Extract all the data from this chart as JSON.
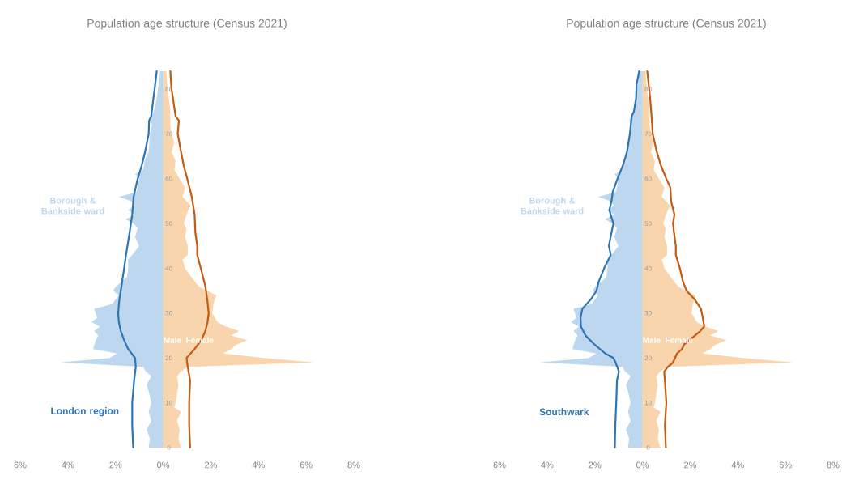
{
  "chart_data": [
    {
      "type": "area",
      "orientation": "horizontal",
      "title": "Population age structure (Census 2021)",
      "annotations": [
        "Male",
        "Female"
      ],
      "xlim": [
        -6,
        8
      ],
      "xticks": [
        {
          "value": -6,
          "label": "6%"
        },
        {
          "value": -4,
          "label": "4%"
        },
        {
          "value": -2,
          "label": "2%"
        },
        {
          "value": 0,
          "label": "0%"
        },
        {
          "value": 2,
          "label": "2%"
        },
        {
          "value": 4,
          "label": "4%"
        },
        {
          "value": 6,
          "label": "6%"
        },
        {
          "value": 8,
          "label": "8%"
        }
      ],
      "ylim": [
        0,
        84
      ],
      "yticks": [
        0,
        10,
        20,
        30,
        40,
        50,
        60,
        70,
        80
      ],
      "series": [
        {
          "name": "Borough & Bankside ward",
          "type": "area",
          "color": "#bdd7ee",
          "x": [
            0,
            2,
            4,
            6,
            8,
            10,
            12,
            14,
            16,
            17,
            18,
            19,
            20,
            21,
            22,
            24,
            25,
            26,
            27,
            28,
            29,
            31,
            32,
            34,
            35,
            36,
            38,
            40,
            42,
            43,
            45,
            47,
            49,
            50,
            51,
            52,
            53,
            54,
            55,
            56,
            57,
            58,
            60,
            61,
            62,
            64,
            66,
            68,
            70,
            72,
            73,
            75,
            78,
            80,
            84
          ],
          "values": [
            -0.61,
            -0.56,
            -0.69,
            -0.5,
            -0.61,
            -0.5,
            -0.58,
            -0.69,
            -0.5,
            -0.73,
            -0.84,
            -4.3,
            -2.26,
            -1.92,
            -2.94,
            -2.83,
            -2.72,
            -2.9,
            -2.66,
            -3.0,
            -2.77,
            -2.9,
            -2.15,
            -1.86,
            -2.1,
            -1.98,
            -1.52,
            -1.47,
            -1.47,
            -1.3,
            -1.01,
            -1.18,
            -1.07,
            -1.24,
            -1.58,
            -1.18,
            -1.47,
            -1.18,
            -1.35,
            -1.86,
            -1.13,
            -1.07,
            -1.01,
            -1.18,
            -0.84,
            -0.78,
            -0.61,
            -0.58,
            -0.56,
            -0.47,
            -0.56,
            -0.39,
            -0.27,
            -0.22,
            -0.13
          ]
        },
        {
          "type": "area",
          "color": "#f8d5ac",
          "x": [
            0,
            2,
            4,
            6,
            8,
            9,
            10,
            12,
            14,
            16,
            17,
            18,
            19,
            20,
            21,
            22,
            23,
            24,
            25,
            26,
            27,
            28,
            30,
            32,
            34,
            35,
            36,
            38,
            40,
            42,
            43,
            45,
            47,
            49,
            50,
            52,
            54,
            56,
            58,
            60,
            62,
            64,
            66,
            68,
            70,
            72,
            75,
            78,
            80,
            84
          ],
          "values": [
            0.75,
            0.64,
            0.69,
            0.58,
            0.75,
            0.47,
            0.52,
            0.58,
            0.64,
            0.58,
            0.75,
            1.03,
            6.32,
            4.22,
            2.51,
            2.85,
            3.08,
            3.53,
            2.85,
            3.19,
            2.63,
            2.28,
            2.06,
            2.11,
            2.23,
            1.83,
            1.49,
            1.2,
            0.92,
            0.81,
            1.03,
            1.03,
            0.92,
            0.98,
            0.86,
            0.98,
            1.15,
            0.81,
            0.92,
            0.69,
            0.47,
            0.52,
            0.35,
            0.47,
            0.35,
            0.3,
            0.3,
            0.24,
            0.18,
            0.13
          ]
        },
        {
          "name": "London region",
          "type": "line",
          "color": "#2e75b6",
          "x": [
            0,
            5,
            10,
            15,
            18,
            20,
            22,
            24,
            26,
            28,
            30,
            33,
            36,
            40,
            43,
            48,
            52,
            56,
            60,
            63,
            66,
            70,
            73,
            74,
            78,
            80,
            84
          ],
          "values": [
            -1.26,
            -1.3,
            -1.3,
            -1.22,
            -1.15,
            -1.18,
            -1.47,
            -1.64,
            -1.78,
            -1.86,
            -1.89,
            -1.84,
            -1.75,
            -1.64,
            -1.56,
            -1.41,
            -1.3,
            -1.24,
            -1.07,
            -0.9,
            -0.76,
            -0.61,
            -0.59,
            -0.5,
            -0.41,
            -0.36,
            -0.27
          ]
        },
        {
          "type": "line",
          "color": "#c55a11",
          "x": [
            0,
            5,
            10,
            15,
            18,
            20,
            22,
            24,
            26,
            28,
            30,
            33,
            36,
            40,
            43,
            45,
            48,
            52,
            56,
            60,
            63,
            66,
            70,
            73,
            74,
            78,
            80,
            84
          ],
          "values": [
            1.13,
            1.09,
            1.09,
            1.13,
            1.03,
            0.98,
            1.32,
            1.6,
            1.77,
            1.86,
            1.91,
            1.85,
            1.77,
            1.58,
            1.43,
            1.43,
            1.35,
            1.32,
            1.2,
            1.01,
            0.86,
            0.75,
            0.61,
            0.66,
            0.52,
            0.41,
            0.35,
            0.3
          ]
        }
      ]
    },
    {
      "type": "area",
      "orientation": "horizontal",
      "title": "Population age structure (Census 2021)",
      "annotations": [
        "Male",
        "Female"
      ],
      "xlim": [
        -6,
        8
      ],
      "xticks": [
        {
          "value": -6,
          "label": "6%"
        },
        {
          "value": -4,
          "label": "4%"
        },
        {
          "value": -2,
          "label": "2%"
        },
        {
          "value": 0,
          "label": "0%"
        },
        {
          "value": 2,
          "label": "2%"
        },
        {
          "value": 4,
          "label": "4%"
        },
        {
          "value": 6,
          "label": "6%"
        },
        {
          "value": 8,
          "label": "8%"
        }
      ],
      "ylim": [
        0,
        84
      ],
      "yticks": [
        0,
        10,
        20,
        30,
        40,
        50,
        60,
        70,
        80
      ],
      "series": [
        {
          "name": "Borough & Bankside ward",
          "type": "area",
          "color": "#bdd7ee",
          "x": [
            0,
            2,
            4,
            6,
            8,
            10,
            12,
            14,
            16,
            17,
            18,
            19,
            20,
            21,
            22,
            24,
            25,
            26,
            27,
            28,
            29,
            31,
            32,
            34,
            35,
            36,
            38,
            40,
            42,
            43,
            45,
            47,
            49,
            50,
            51,
            52,
            53,
            54,
            55,
            56,
            57,
            58,
            60,
            61,
            62,
            64,
            66,
            68,
            70,
            72,
            73,
            75,
            78,
            80,
            84
          ],
          "values": [
            -0.61,
            -0.56,
            -0.69,
            -0.5,
            -0.61,
            -0.5,
            -0.58,
            -0.69,
            -0.5,
            -0.73,
            -0.84,
            -4.3,
            -2.26,
            -1.92,
            -2.94,
            -2.83,
            -2.72,
            -2.9,
            -2.66,
            -3.0,
            -2.77,
            -2.9,
            -2.15,
            -1.86,
            -2.1,
            -1.98,
            -1.52,
            -1.47,
            -1.47,
            -1.3,
            -1.01,
            -1.18,
            -1.07,
            -1.24,
            -1.58,
            -1.18,
            -1.47,
            -1.18,
            -1.35,
            -1.86,
            -1.13,
            -1.07,
            -1.01,
            -1.18,
            -0.84,
            -0.78,
            -0.61,
            -0.58,
            -0.56,
            -0.47,
            -0.56,
            -0.39,
            -0.27,
            -0.22,
            -0.13
          ]
        },
        {
          "type": "area",
          "color": "#f8d5ac",
          "x": [
            0,
            2,
            4,
            6,
            8,
            9,
            10,
            12,
            14,
            16,
            17,
            18,
            19,
            20,
            21,
            22,
            23,
            24,
            25,
            26,
            27,
            28,
            30,
            32,
            34,
            35,
            36,
            38,
            40,
            42,
            43,
            45,
            47,
            49,
            50,
            52,
            54,
            56,
            58,
            60,
            62,
            64,
            66,
            68,
            70,
            72,
            75,
            78,
            80,
            84
          ],
          "values": [
            0.75,
            0.64,
            0.69,
            0.58,
            0.75,
            0.47,
            0.52,
            0.58,
            0.64,
            0.58,
            0.75,
            1.03,
            6.32,
            4.22,
            2.51,
            2.85,
            3.08,
            3.53,
            2.85,
            3.19,
            2.63,
            2.28,
            2.06,
            2.11,
            2.23,
            1.83,
            1.49,
            1.2,
            0.92,
            0.81,
            1.03,
            1.03,
            0.92,
            0.98,
            0.86,
            0.98,
            1.15,
            0.81,
            0.92,
            0.69,
            0.47,
            0.52,
            0.35,
            0.47,
            0.35,
            0.3,
            0.3,
            0.24,
            0.18,
            0.13
          ]
        },
        {
          "name": "Southwark",
          "type": "line",
          "color": "#2e75b6",
          "x": [
            0,
            5,
            10,
            15,
            17,
            19,
            20,
            21,
            23,
            25,
            27,
            29,
            31,
            33,
            35,
            37,
            40,
            43,
            45,
            48,
            50,
            53,
            55,
            57,
            60,
            63,
            66,
            70,
            74,
            75,
            78,
            81,
            84
          ],
          "values": [
            -1.16,
            -1.14,
            -1.1,
            -1.07,
            -0.99,
            -1.13,
            -1.22,
            -1.56,
            -2.01,
            -2.39,
            -2.58,
            -2.6,
            -2.52,
            -2.18,
            -1.93,
            -1.84,
            -1.61,
            -1.33,
            -1.41,
            -1.3,
            -1.22,
            -1.39,
            -1.3,
            -1.25,
            -1.05,
            -0.82,
            -0.65,
            -0.53,
            -0.45,
            -0.36,
            -0.27,
            -0.25,
            -0.14
          ]
        },
        {
          "type": "line",
          "color": "#c55a11",
          "x": [
            0,
            5,
            10,
            15,
            17,
            18,
            19,
            21,
            22,
            23,
            24,
            25,
            26,
            27,
            29,
            31,
            33,
            35,
            37,
            40,
            43,
            45,
            48,
            50,
            52,
            55,
            58,
            60,
            63,
            66,
            70,
            74,
            78,
            81,
            84
          ],
          "values": [
            0.98,
            0.94,
            1.0,
            0.94,
            0.91,
            1.06,
            1.28,
            1.45,
            1.66,
            1.74,
            1.97,
            2.2,
            2.42,
            2.59,
            2.53,
            2.45,
            2.2,
            1.85,
            1.7,
            1.57,
            1.4,
            1.4,
            1.32,
            1.28,
            1.34,
            1.2,
            1.17,
            1.0,
            0.77,
            0.6,
            0.43,
            0.38,
            0.32,
            0.26,
            0.2
          ]
        }
      ]
    }
  ]
}
